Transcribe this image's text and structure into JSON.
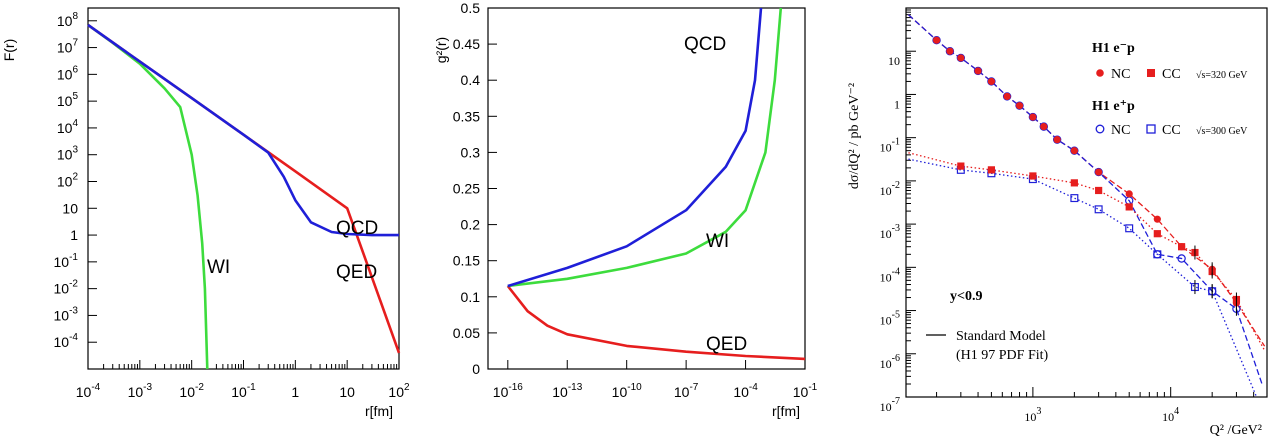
{
  "colors": {
    "qcd": "#1f1fd8",
    "qed": "#e61e1e",
    "wi": "#3ddc3d",
    "nc_minus": "#e61e1e",
    "cc_minus": "#e61e1e",
    "nc_plus": "#1f1fd8",
    "cc_plus": "#1f1fd8"
  },
  "chart_data": [
    {
      "type": "line",
      "ylabel": "F(r)",
      "xlabel": "r[fm]",
      "xscale": "log",
      "yscale": "log",
      "xlim": [
        0.0001,
        100
      ],
      "ylim": [
        1e-05,
        300000000
      ],
      "x_ticks": [
        {
          "base": "10",
          "exp": "-4"
        },
        {
          "base": "10",
          "exp": "-3"
        },
        {
          "base": "10",
          "exp": "-2"
        },
        {
          "base": "10",
          "exp": "-1"
        },
        {
          "base": "1",
          "exp": ""
        },
        {
          "base": "10",
          "exp": ""
        },
        {
          "base": "10",
          "exp": "2"
        }
      ],
      "y_ticks": [
        {
          "base": "10",
          "exp": "8"
        },
        {
          "base": "10",
          "exp": "7"
        },
        {
          "base": "10",
          "exp": "6"
        },
        {
          "base": "10",
          "exp": "5"
        },
        {
          "base": "10",
          "exp": "4"
        },
        {
          "base": "10",
          "exp": "3"
        },
        {
          "base": "10",
          "exp": "2"
        },
        {
          "base": "10",
          "exp": ""
        },
        {
          "base": "1",
          "exp": ""
        },
        {
          "base": "10",
          "exp": "-1"
        },
        {
          "base": "10",
          "exp": "-2"
        },
        {
          "base": "10",
          "exp": "-3"
        },
        {
          "base": "10",
          "exp": "-4"
        }
      ],
      "series": [
        {
          "name": "QCD",
          "x": [
            0.0001,
            0.001,
            0.01,
            0.1,
            0.3,
            0.6,
            1,
            2,
            5,
            10,
            30,
            100
          ],
          "y": [
            70000000,
            3000000,
            130000,
            5600,
            1200,
            150,
            20,
            3,
            1.3,
            1.1,
            1.0,
            1.0
          ]
        },
        {
          "name": "QED",
          "x": [
            0.0001,
            0.001,
            0.01,
            0.1,
            1,
            10,
            100
          ],
          "y": [
            70000000,
            3000000,
            130000,
            5600,
            240,
            10,
            4e-05
          ]
        },
        {
          "name": "WI",
          "x": [
            0.0001,
            0.0003,
            0.001,
            0.003,
            0.006,
            0.01,
            0.013,
            0.016,
            0.018,
            0.02
          ],
          "y": [
            70000000,
            15000000,
            2500000,
            300000,
            60000,
            1000,
            30,
            0.5,
            0.01,
            1e-05
          ]
        }
      ],
      "annotations": [
        "QCD",
        "QED",
        "WI"
      ]
    },
    {
      "type": "line",
      "ylabel": "g²(r)",
      "xlabel": "r[fm]",
      "xscale": "log",
      "xlim": [
        1e-17,
        0.1
      ],
      "ylim": [
        0,
        0.5
      ],
      "x_ticks": [
        {
          "base": "10",
          "exp": "-16"
        },
        {
          "base": "10",
          "exp": "-13"
        },
        {
          "base": "10",
          "exp": "-10"
        },
        {
          "base": "10",
          "exp": "-7"
        },
        {
          "base": "10",
          "exp": "-4"
        },
        {
          "base": "10",
          "exp": "-1"
        }
      ],
      "y_ticks": [
        "0",
        "0.05",
        "0.1",
        "0.15",
        "0.2",
        "0.25",
        "0.3",
        "0.35",
        "0.4",
        "0.45",
        "0.5"
      ],
      "series": [
        {
          "name": "QCD",
          "x": [
            1e-16,
            1e-13,
            1e-10,
            1e-07,
            1e-05,
            0.0001,
            0.0003,
            0.0006
          ],
          "y": [
            0.115,
            0.14,
            0.17,
            0.22,
            0.28,
            0.33,
            0.4,
            0.5
          ]
        },
        {
          "name": "WI",
          "x": [
            1e-16,
            1e-13,
            1e-10,
            1e-07,
            1e-05,
            0.0001,
            0.001,
            0.003,
            0.006
          ],
          "y": [
            0.115,
            0.125,
            0.14,
            0.16,
            0.19,
            0.22,
            0.3,
            0.4,
            0.5
          ]
        },
        {
          "name": "QED",
          "x": [
            1e-16,
            1e-15,
            1e-14,
            1e-13,
            1e-10,
            1e-07,
            0.0001,
            0.1
          ],
          "y": [
            0.115,
            0.08,
            0.06,
            0.048,
            0.032,
            0.024,
            0.018,
            0.014
          ]
        }
      ],
      "annotations": [
        "QCD",
        "WI",
        "QED"
      ]
    },
    {
      "type": "scatter",
      "ylabel": "dσ/dQ² / pb GeV⁻²",
      "xlabel": "Q² /GeV²",
      "xscale": "log",
      "yscale": "log",
      "xlim": [
        120,
        50000
      ],
      "ylim": [
        1e-07,
        100
      ],
      "x_ticks": [
        {
          "base": "10",
          "exp": "3"
        },
        {
          "base": "10",
          "exp": "4"
        }
      ],
      "y_ticks": [
        {
          "base": "10",
          "exp": ""
        },
        {
          "base": "1",
          "exp": ""
        },
        {
          "base": "10",
          "exp": "-1"
        },
        {
          "base": "10",
          "exp": "-2"
        },
        {
          "base": "10",
          "exp": "-3"
        },
        {
          "base": "10",
          "exp": "-4"
        },
        {
          "base": "10",
          "exp": "-5"
        },
        {
          "base": "10",
          "exp": "-6"
        },
        {
          "base": "10",
          "exp": "-7"
        }
      ],
      "legend": {
        "group1": "H1 e⁻p",
        "group2": "H1 e⁺p",
        "nc": "NC",
        "cc": "CC",
        "sqrt1": "√s=320 GeV",
        "sqrt2": "√s=300 GeV",
        "cut": "y<0.9",
        "model1": "Standard Model",
        "model2": "(H1 97 PDF Fit)"
      },
      "series": [
        {
          "name": "NC e⁻p",
          "marker": "filled-circle",
          "x": [
            200,
            250,
            300,
            400,
            500,
            650,
            800,
            1000,
            1200,
            1500,
            2000,
            3000,
            5000,
            8000,
            12000,
            20000,
            30000
          ],
          "y": [
            18,
            10,
            7,
            3.5,
            2,
            0.9,
            0.55,
            0.3,
            0.18,
            0.09,
            0.05,
            0.016,
            0.005,
            0.0013,
            0.0003,
            9e-05,
            1.5e-05
          ]
        },
        {
          "name": "CC e⁻p",
          "marker": "filled-square",
          "x": [
            300,
            500,
            1000,
            2000,
            3000,
            5000,
            8000,
            12000,
            15000,
            20000,
            30000
          ],
          "y": [
            0.022,
            0.018,
            0.013,
            0.009,
            0.006,
            0.0025,
            0.0006,
            0.0003,
            0.00022,
            8e-05,
            1.8e-05
          ]
        },
        {
          "name": "NC e⁺p",
          "marker": "open-circle",
          "x": [
            200,
            250,
            300,
            400,
            500,
            650,
            800,
            1000,
            1200,
            1500,
            2000,
            3000,
            5000,
            8000,
            12000,
            20000,
            30000
          ],
          "y": [
            18,
            10,
            7,
            3.5,
            2,
            0.9,
            0.55,
            0.3,
            0.18,
            0.09,
            0.05,
            0.016,
            0.0035,
            0.0002,
            0.00016,
            2.8e-05,
            1.1e-05
          ]
        },
        {
          "name": "CC e⁺p",
          "marker": "open-square",
          "x": [
            300,
            500,
            1000,
            2000,
            3000,
            5000,
            8000,
            15000,
            20000
          ],
          "y": [
            0.018,
            0.015,
            0.011,
            0.004,
            0.0022,
            0.0008,
            0.0002,
            3.5e-05,
            2.8e-05
          ]
        }
      ]
    }
  ]
}
